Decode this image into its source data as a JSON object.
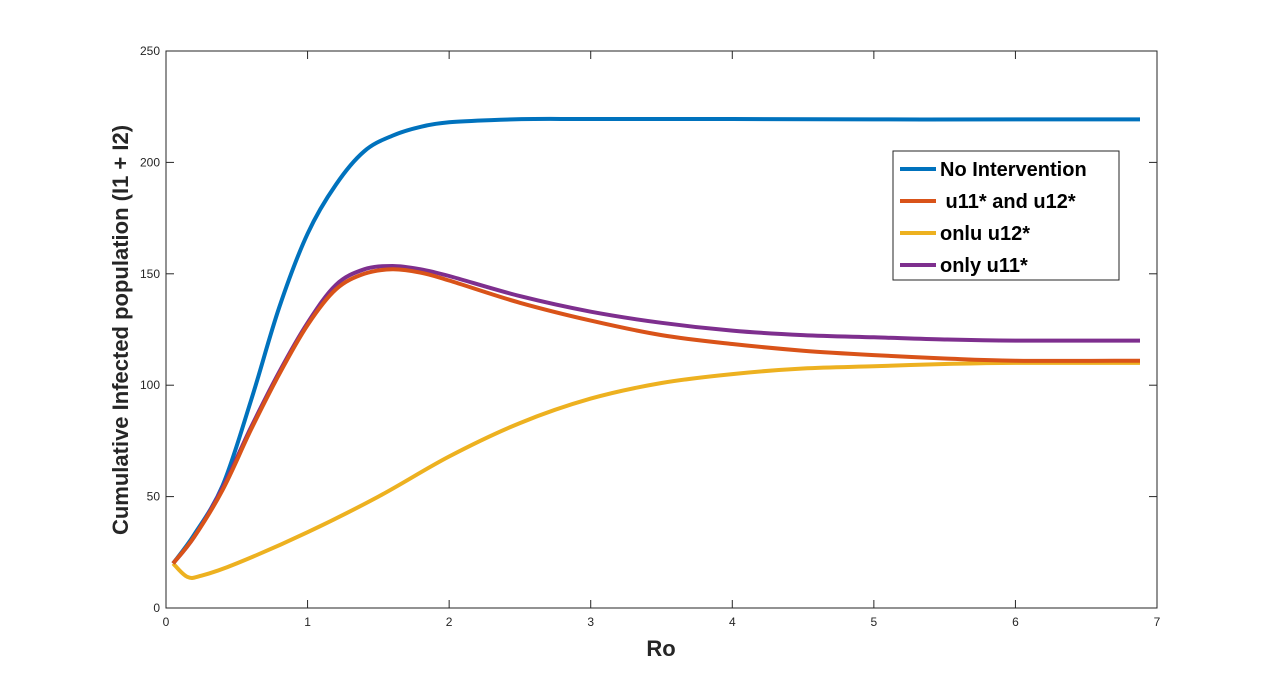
{
  "chart_data": {
    "type": "line",
    "title": "",
    "xlabel": "Ro",
    "ylabel": "Cumulative Infected population (I1 + I2)",
    "xlim": [
      0,
      7
    ],
    "ylim": [
      0,
      250
    ],
    "xticks": [
      0,
      1,
      2,
      3,
      4,
      5,
      6,
      7
    ],
    "yticks": [
      0,
      50,
      100,
      150,
      200,
      250
    ],
    "grid": false,
    "legend_position": "top-right",
    "series": [
      {
        "name": "No Intervention",
        "color": "#0072BD",
        "x": [
          0.05,
          0.2,
          0.4,
          0.6,
          0.8,
          1.0,
          1.2,
          1.4,
          1.6,
          1.8,
          2.0,
          2.3,
          2.6,
          3.0,
          4.0,
          5.0,
          6.0,
          6.88
        ],
        "y": [
          20,
          33,
          55,
          93,
          135,
          168,
          190,
          205,
          212,
          216,
          218,
          219,
          219.5,
          219.5,
          219.5,
          219.3,
          219.3,
          219.3
        ]
      },
      {
        "name": " u11* and u12*",
        "color": "#D95319",
        "x": [
          0.05,
          0.2,
          0.4,
          0.6,
          0.8,
          1.0,
          1.2,
          1.4,
          1.6,
          1.8,
          2.0,
          2.5,
          3.0,
          3.5,
          4.0,
          4.5,
          5.0,
          5.5,
          6.0,
          6.88
        ],
        "y": [
          20,
          32,
          53,
          80,
          105,
          127,
          143,
          150,
          152,
          150.5,
          147,
          137,
          129,
          122.5,
          118.5,
          115.5,
          113.5,
          112,
          111,
          111
        ]
      },
      {
        "name": "onlu u12*",
        "color": "#EDB120",
        "x": [
          0.05,
          0.15,
          0.25,
          0.5,
          1.0,
          1.5,
          2.0,
          2.5,
          3.0,
          3.5,
          4.0,
          4.5,
          5.0,
          5.5,
          6.0,
          6.88
        ],
        "y": [
          20,
          14,
          14.5,
          20,
          34,
          50,
          68,
          83,
          94,
          101,
          105,
          107.5,
          108.5,
          109.5,
          110,
          110
        ]
      },
      {
        "name": "only u11*",
        "color": "#7E2F8E",
        "x": [
          0.05,
          0.2,
          0.4,
          0.6,
          0.8,
          1.0,
          1.2,
          1.4,
          1.6,
          1.8,
          2.0,
          2.5,
          3.0,
          3.5,
          4.0,
          4.5,
          5.0,
          5.5,
          6.0,
          6.88
        ],
        "y": [
          20,
          32,
          54,
          81,
          106,
          128,
          145,
          152,
          153.5,
          152,
          149,
          140,
          133,
          128,
          124.5,
          122.5,
          121.5,
          120.5,
          120,
          120
        ]
      }
    ]
  }
}
